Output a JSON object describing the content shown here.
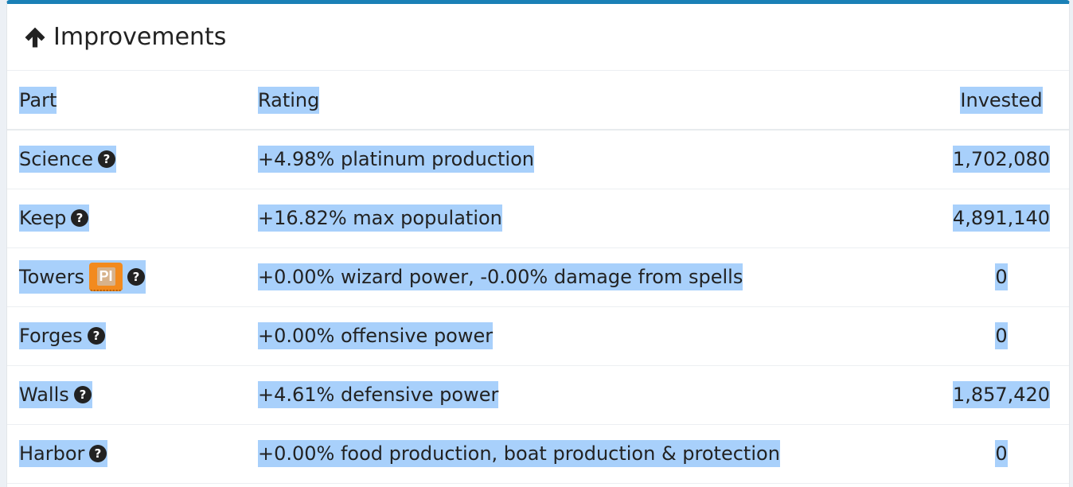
{
  "header": {
    "title": "Improvements",
    "icon": "arrow-up-icon"
  },
  "table": {
    "columns": {
      "part": "Part",
      "rating": "Rating",
      "invested": "Invested"
    },
    "rows": [
      {
        "part": "Science",
        "rating": "+4.98% platinum production",
        "invested": "1,702,080"
      },
      {
        "part": "Keep",
        "rating": "+16.82% max population",
        "invested": "4,891,140"
      },
      {
        "part": "Towers",
        "badge": "PI",
        "rating": "+0.00% wizard power, -0.00% damage from spells",
        "invested": "0"
      },
      {
        "part": "Forges",
        "rating": "+0.00% offensive power",
        "invested": "0"
      },
      {
        "part": "Walls",
        "rating": "+4.61% defensive power",
        "invested": "1,857,420"
      },
      {
        "part": "Harbor",
        "rating": "+0.00% food production, boat production & protection",
        "invested": "0"
      }
    ]
  },
  "colors": {
    "accent": "#1a80b6",
    "selection": "#a8d0fb",
    "badge": "#f28a1e"
  }
}
